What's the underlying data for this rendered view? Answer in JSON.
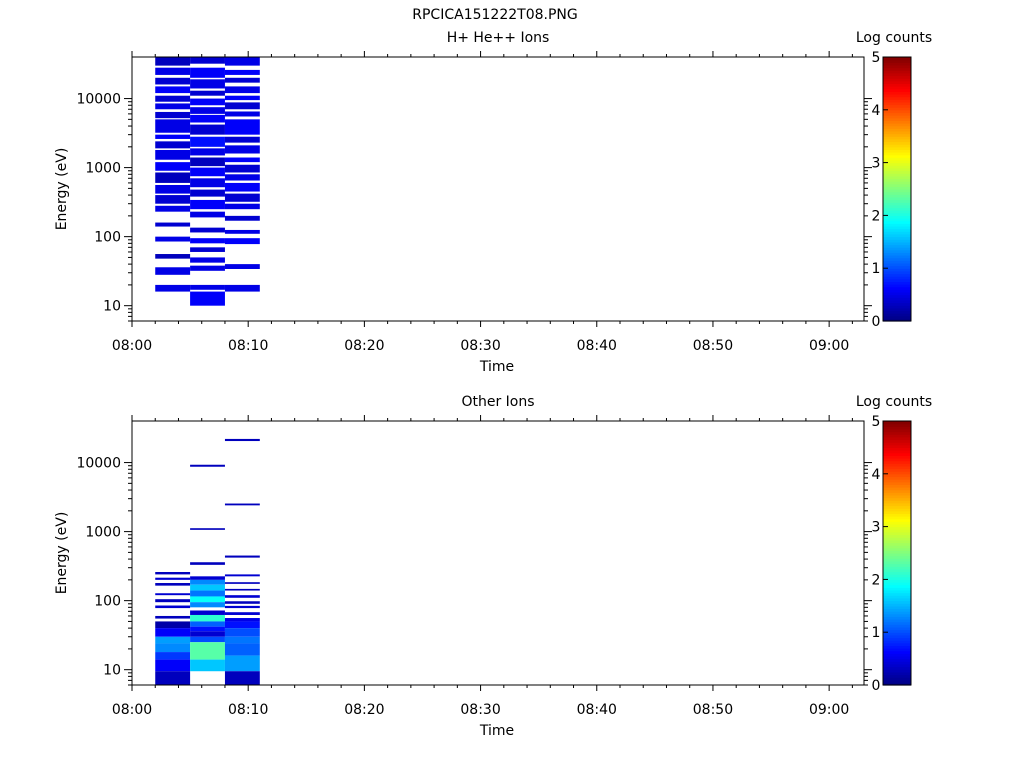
{
  "page_title": "RPCICA151222T08.PNG",
  "chart_data": [
    {
      "type": "heatmap",
      "title": "H+ He++ Ions",
      "xlabel": "Time",
      "ylabel": "Energy (eV)",
      "y_scale": "log",
      "ylim": [
        6,
        40000
      ],
      "y_ticks": [
        10,
        100,
        1000,
        10000
      ],
      "y_tick_labels": [
        "10",
        "100",
        "1000",
        "10000"
      ],
      "xlim": [
        "08:00",
        "09:03"
      ],
      "x_ticks": [
        "08:00",
        "08:10",
        "08:20",
        "08:30",
        "08:40",
        "08:50",
        "09:00"
      ],
      "colorbar": {
        "label": "Log counts",
        "min": 0,
        "max": 5,
        "ticks": [
          0,
          1,
          2,
          3,
          4,
          5
        ]
      },
      "columns": [
        {
          "t_start": "08:02",
          "t_end": "08:05",
          "cells": [
            [
              30000,
              40000,
              0.3
            ],
            [
              22000,
              28000,
              0.5
            ],
            [
              16000,
              20000,
              0.4
            ],
            [
              12000,
              15000,
              0.6
            ],
            [
              9000,
              11000,
              0.4
            ],
            [
              7000,
              8500,
              0.5
            ],
            [
              5200,
              6400,
              0.4
            ],
            [
              3200,
              5000,
              0.5
            ],
            [
              2600,
              3000,
              0.6
            ],
            [
              1900,
              2400,
              0.4
            ],
            [
              1300,
              1800,
              0.5
            ],
            [
              900,
              1200,
              0.6
            ],
            [
              600,
              850,
              0.3
            ],
            [
              420,
              560,
              0.5
            ],
            [
              300,
              400,
              0.4
            ],
            [
              230,
              280,
              0.5
            ],
            [
              140,
              160,
              0.4
            ],
            [
              85,
              100,
              0.5
            ],
            [
              48,
              56,
              0.3
            ],
            [
              28,
              36,
              0.5
            ],
            [
              16,
              20,
              0.5
            ]
          ]
        },
        {
          "t_start": "08:05",
          "t_end": "08:08",
          "cells": [
            [
              32000,
              40000,
              0.4
            ],
            [
              20000,
              28000,
              0.6
            ],
            [
              14000,
              19000,
              0.5
            ],
            [
              11000,
              13000,
              0.4
            ],
            [
              8000,
              10000,
              0.6
            ],
            [
              6000,
              7500,
              0.5
            ],
            [
              4500,
              5800,
              0.6
            ],
            [
              3000,
              4200,
              0.4
            ],
            [
              2000,
              2800,
              0.7
            ],
            [
              1500,
              1900,
              0.5
            ],
            [
              1050,
              1400,
              0.3
            ],
            [
              750,
              1000,
              0.6
            ],
            [
              520,
              700,
              0.5
            ],
            [
              380,
              480,
              0.4
            ],
            [
              250,
              340,
              0.6
            ],
            [
              190,
              230,
              0.5
            ],
            [
              115,
              135,
              0.4
            ],
            [
              80,
              95,
              0.6
            ],
            [
              60,
              70,
              0.4
            ],
            [
              42,
              50,
              0.5
            ],
            [
              32,
              38,
              0.5
            ],
            [
              17,
              20,
              0.5
            ],
            [
              10,
              16,
              0.6
            ]
          ]
        },
        {
          "t_start": "08:08",
          "t_end": "08:11",
          "cells": [
            [
              30000,
              40000,
              0.5
            ],
            [
              22000,
              26000,
              0.6
            ],
            [
              17000,
              20000,
              0.4
            ],
            [
              12000,
              15000,
              0.5
            ],
            [
              9500,
              11000,
              0.6
            ],
            [
              7000,
              8800,
              0.4
            ],
            [
              5500,
              6500,
              0.5
            ],
            [
              3000,
              5000,
              0.6
            ],
            [
              2300,
              2800,
              0.4
            ],
            [
              1600,
              2100,
              0.5
            ],
            [
              1200,
              1400,
              0.6
            ],
            [
              850,
              1100,
              0.4
            ],
            [
              650,
              800,
              0.5
            ],
            [
              450,
              600,
              0.6
            ],
            [
              320,
              420,
              0.4
            ],
            [
              250,
              300,
              0.5
            ],
            [
              170,
              200,
              0.4
            ],
            [
              110,
              125,
              0.5
            ],
            [
              78,
              95,
              0.6
            ],
            [
              34,
              40,
              0.5
            ],
            [
              16,
              20,
              0.5
            ]
          ]
        }
      ]
    },
    {
      "type": "heatmap",
      "title": "Other Ions",
      "xlabel": "Time",
      "ylabel": "Energy (eV)",
      "y_scale": "log",
      "ylim": [
        6,
        40000
      ],
      "y_ticks": [
        10,
        100,
        1000,
        10000
      ],
      "y_tick_labels": [
        "10",
        "100",
        "1000",
        "10000"
      ],
      "xlim": [
        "08:00",
        "09:03"
      ],
      "x_ticks": [
        "08:00",
        "08:10",
        "08:20",
        "08:30",
        "08:40",
        "08:50",
        "09:00"
      ],
      "colorbar": {
        "label": "Log counts",
        "min": 0,
        "max": 5,
        "ticks": [
          0,
          1,
          2,
          3,
          4,
          5
        ]
      },
      "columns": [
        {
          "t_start": "08:02",
          "t_end": "08:05",
          "cells": [
            [
              240,
              260,
              0.3
            ],
            [
              200,
              215,
              0.4
            ],
            [
              165,
              180,
              0.3
            ],
            [
              120,
              128,
              0.4
            ],
            [
              95,
              105,
              0.3
            ],
            [
              78,
              85,
              0.4
            ],
            [
              55,
              60,
              0.3
            ],
            [
              40,
              50,
              0.2
            ],
            [
              30,
              40,
              0.6
            ],
            [
              24,
              30,
              1.4
            ],
            [
              18,
              24,
              1.3
            ],
            [
              14,
              18,
              0.9
            ],
            [
              9.5,
              14,
              0.6
            ],
            [
              6,
              9.5,
              0.3
            ]
          ]
        },
        {
          "t_start": "08:05",
          "t_end": "08:08",
          "cells": [
            [
              8700,
              9300,
              0.3
            ],
            [
              1060,
              1120,
              0.3
            ],
            [
              330,
              360,
              0.3
            ],
            [
              200,
              225,
              0.4
            ],
            [
              170,
              200,
              1.3
            ],
            [
              140,
              170,
              1.6
            ],
            [
              115,
              140,
              1.2
            ],
            [
              95,
              115,
              1.9
            ],
            [
              80,
              95,
              1.3
            ],
            [
              62,
              72,
              0.4
            ],
            [
              50,
              62,
              2.1
            ],
            [
              42,
              50,
              1.1
            ],
            [
              36,
              42,
              0.7
            ],
            [
              30,
              36,
              0.4
            ],
            [
              25,
              30,
              1.0
            ],
            [
              14,
              25,
              2.3
            ],
            [
              9.5,
              14,
              1.6
            ]
          ]
        },
        {
          "t_start": "08:08",
          "t_end": "08:11",
          "cells": [
            [
              20500,
              22000,
              0.3
            ],
            [
              2400,
              2550,
              0.3
            ],
            [
              420,
              450,
              0.3
            ],
            [
              225,
              240,
              0.4
            ],
            [
              175,
              185,
              0.3
            ],
            [
              140,
              148,
              0.3
            ],
            [
              110,
              120,
              0.4
            ],
            [
              90,
              98,
              0.3
            ],
            [
              78,
              84,
              0.4
            ],
            [
              62,
              68,
              0.4
            ],
            [
              50,
              56,
              0.5
            ],
            [
              40,
              50,
              0.7
            ],
            [
              30,
              40,
              1.0
            ],
            [
              24,
              30,
              1.2
            ],
            [
              16,
              24,
              1.1
            ],
            [
              9.5,
              16,
              1.4
            ],
            [
              6,
              9.5,
              0.3
            ]
          ]
        }
      ]
    }
  ]
}
